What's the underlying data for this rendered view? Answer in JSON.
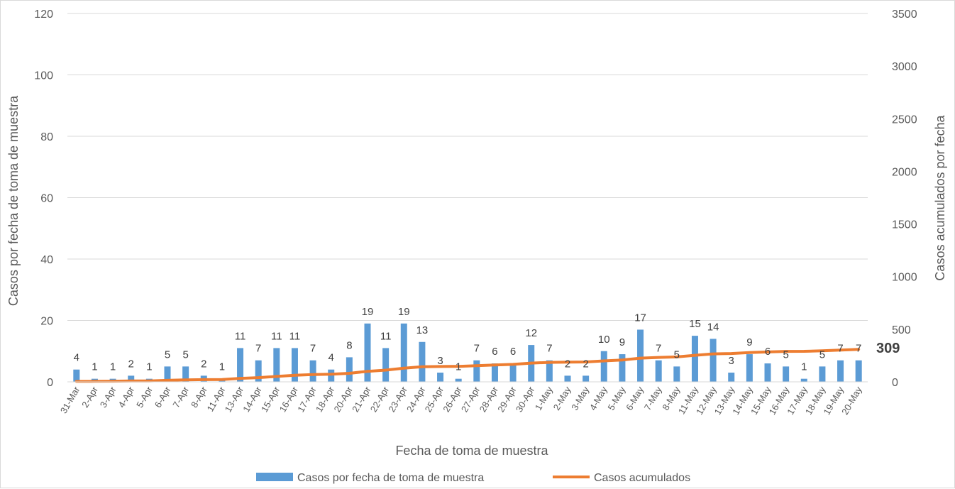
{
  "chart_data": {
    "type": "bar",
    "xlabel": "Fecha de toma de muestra",
    "ylabel": "Casos por fecha de toma de muestra",
    "y2label": "Casos acumulados por fecha",
    "ylim": [
      0,
      120
    ],
    "y2lim": [
      0,
      3500
    ],
    "yticks": [
      "0",
      "20",
      "40",
      "60",
      "80",
      "100",
      "120"
    ],
    "y2ticks": [
      "0",
      "500",
      "1000",
      "1500",
      "2000",
      "2500",
      "3000",
      "3500"
    ],
    "grid": true,
    "legend_position": "bottom",
    "categories": [
      "31-Mar",
      "2-Apr",
      "3-Apr",
      "4-Apr",
      "5-Apr",
      "6-Apr",
      "7-Apr",
      "8-Apr",
      "11-Apr",
      "13-Apr",
      "14-Apr",
      "15-Apr",
      "16-Apr",
      "17-Apr",
      "18-Apr",
      "20-Apr",
      "21-Apr",
      "22-Apr",
      "23-Apr",
      "24-Apr",
      "25-Apr",
      "26-Apr",
      "27-Apr",
      "28-Apr",
      "29-Apr",
      "30-Apr",
      "1-May",
      "2-May",
      "3-May",
      "4-May",
      "5-May",
      "6-May",
      "7-May",
      "8-May",
      "11-May",
      "12-May",
      "13-May",
      "14-May",
      "15-May",
      "16-May",
      "17-May",
      "18-May",
      "19-May",
      "20-May"
    ],
    "series": [
      {
        "name": "Casos por fecha de toma de muestra",
        "type": "bar",
        "axis": "left",
        "color": "#5b9bd5",
        "values": [
          4,
          1,
          1,
          2,
          1,
          5,
          5,
          2,
          1,
          11,
          7,
          11,
          11,
          7,
          4,
          8,
          19,
          11,
          19,
          13,
          3,
          1,
          7,
          6,
          6,
          12,
          7,
          2,
          2,
          10,
          9,
          17,
          7,
          5,
          15,
          14,
          3,
          9,
          6,
          5,
          1,
          5,
          7,
          7
        ]
      },
      {
        "name": "Casos acumulados",
        "type": "line",
        "axis": "right",
        "color": "#ed7d31",
        "values": [
          4,
          5,
          6,
          8,
          9,
          14,
          19,
          21,
          22,
          33,
          40,
          51,
          62,
          69,
          73,
          81,
          100,
          111,
          130,
          143,
          146,
          147,
          154,
          160,
          166,
          178,
          185,
          187,
          189,
          199,
          208,
          225,
          232,
          237,
          252,
          266,
          269,
          278,
          284,
          289,
          290,
          295,
          302,
          309
        ]
      }
    ],
    "final_label": "309"
  }
}
